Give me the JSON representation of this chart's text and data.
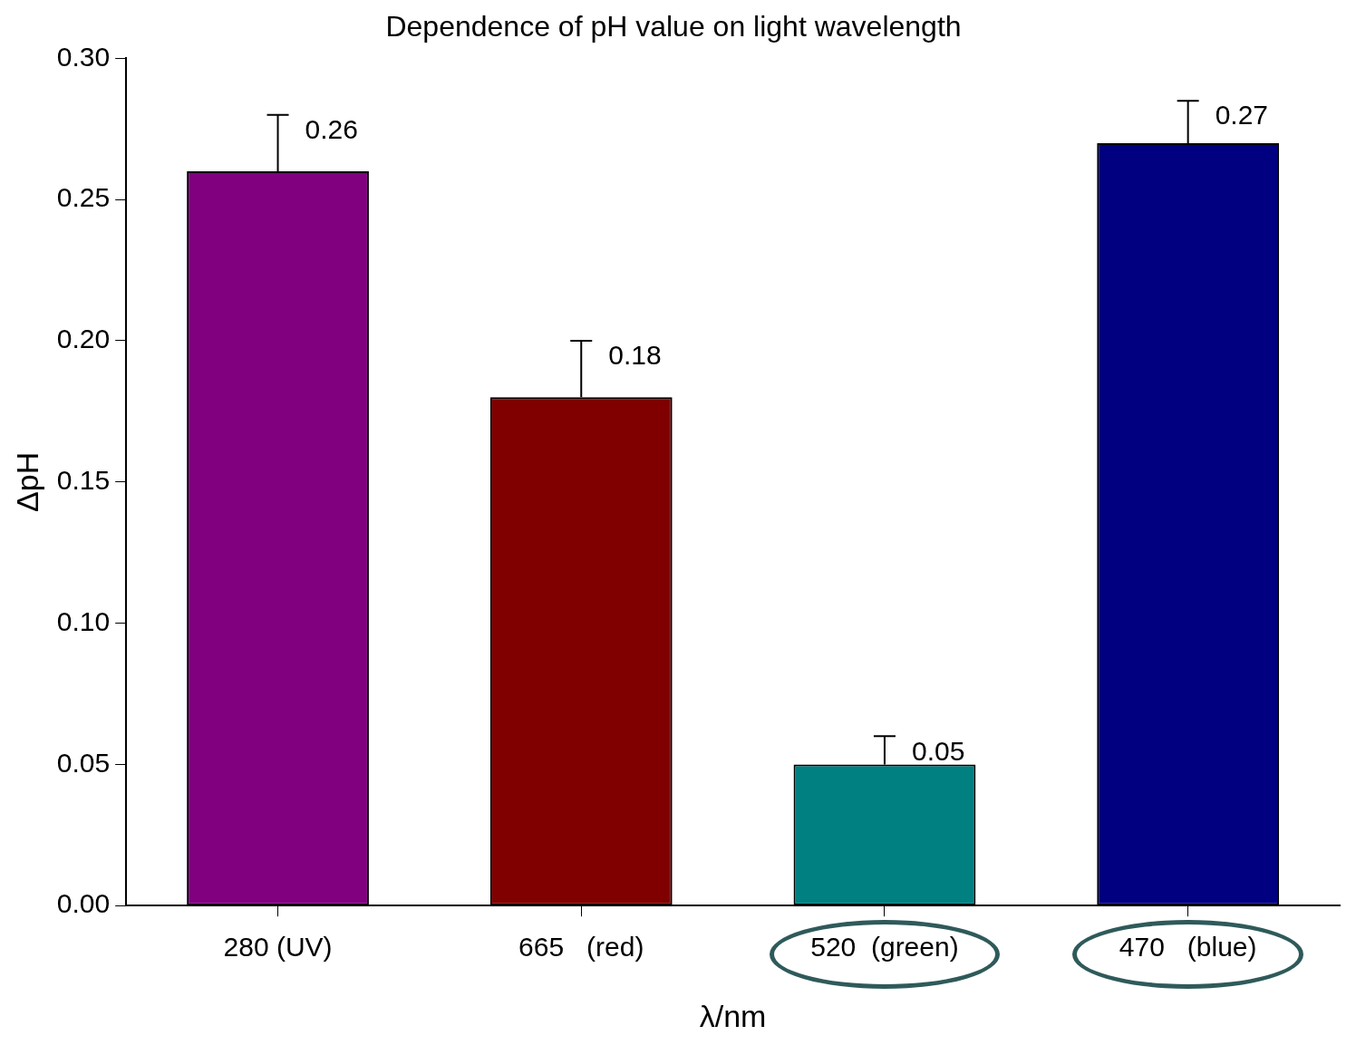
{
  "chart_data": {
    "type": "bar",
    "title": "Dependence of pH value on light wavelength",
    "xlabel": "λ/nm",
    "ylabel": "ΔpH",
    "categories": [
      "280 (UV)",
      "665   (red)",
      "520  (green)",
      "470   (blue)"
    ],
    "values": [
      0.26,
      0.18,
      0.05,
      0.27
    ],
    "colors": [
      "#800080",
      "#800000",
      "#008080",
      "#000080"
    ],
    "errors": [
      [
        0.26,
        0.28
      ],
      [
        0.18,
        0.2
      ],
      [
        0.05,
        0.06
      ],
      [
        0.27,
        0.285
      ]
    ],
    "data_labels": true,
    "ylim": [
      0,
      0.3
    ],
    "yticks": [
      {
        "value": 0,
        "label": "0.00"
      },
      {
        "value": 0.05,
        "label": "0.05"
      },
      {
        "value": 0.1,
        "label": "0.10"
      },
      {
        "value": 0.15,
        "label": "0.15"
      },
      {
        "value": 0.2,
        "label": "0.20"
      },
      {
        "value": 0.25,
        "label": "0.25"
      },
      {
        "value": 0.3,
        "label": "0.30"
      }
    ],
    "grid": false,
    "legend": false
  }
}
